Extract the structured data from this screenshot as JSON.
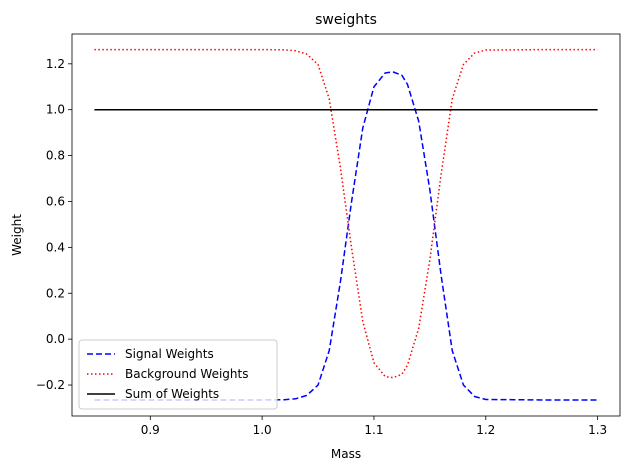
{
  "chart_data": {
    "type": "line",
    "title": "sweights",
    "xlabel": "Mass",
    "ylabel": "Weight",
    "xlim": [
      0.83,
      1.32
    ],
    "ylim": [
      -0.335,
      1.33
    ],
    "xticks": [
      0.9,
      1.0,
      1.1,
      1.2,
      1.3
    ],
    "xtick_labels": [
      "0.9",
      "1.0",
      "1.1",
      "1.2",
      "1.3"
    ],
    "yticks": [
      -0.2,
      0.0,
      0.2,
      0.4,
      0.6,
      0.8,
      1.0,
      1.2
    ],
    "ytick_labels": [
      "−0.2",
      "0.0",
      "0.2",
      "0.4",
      "0.6",
      "0.8",
      "1.0",
      "1.2"
    ],
    "grid": false,
    "legend_position": "lower-left",
    "x": [
      0.85,
      0.9,
      0.95,
      1.0,
      1.02,
      1.03,
      1.04,
      1.05,
      1.06,
      1.07,
      1.08,
      1.09,
      1.1,
      1.11,
      1.117,
      1.125,
      1.13,
      1.14,
      1.15,
      1.16,
      1.17,
      1.18,
      1.19,
      1.2,
      1.25,
      1.3
    ],
    "series": [
      {
        "name": "Signal Weights",
        "color": "#0000ff",
        "style": "dashed",
        "values": [
          -0.265,
          -0.265,
          -0.265,
          -0.265,
          -0.264,
          -0.26,
          -0.245,
          -0.2,
          -0.05,
          0.25,
          0.6,
          0.92,
          1.1,
          1.16,
          1.165,
          1.15,
          1.11,
          0.95,
          0.65,
          0.28,
          -0.05,
          -0.2,
          -0.25,
          -0.263,
          -0.265,
          -0.265
        ]
      },
      {
        "name": "Background Weights",
        "color": "#ff0000",
        "style": "dotted",
        "values": [
          1.262,
          1.262,
          1.262,
          1.262,
          1.261,
          1.257,
          1.242,
          1.197,
          1.047,
          0.747,
          0.397,
          0.077,
          -0.103,
          -0.163,
          -0.168,
          -0.153,
          -0.113,
          0.047,
          0.347,
          0.717,
          1.047,
          1.197,
          1.247,
          1.26,
          1.262,
          1.262
        ]
      },
      {
        "name": "Sum of Weights",
        "color": "#000000",
        "style": "solid",
        "values": [
          1.0,
          1.0,
          1.0,
          1.0,
          1.0,
          1.0,
          1.0,
          1.0,
          1.0,
          1.0,
          1.0,
          1.0,
          1.0,
          1.0,
          1.0,
          1.0,
          1.0,
          1.0,
          1.0,
          1.0,
          1.0,
          1.0,
          1.0,
          1.0,
          1.0,
          1.0
        ]
      }
    ]
  }
}
